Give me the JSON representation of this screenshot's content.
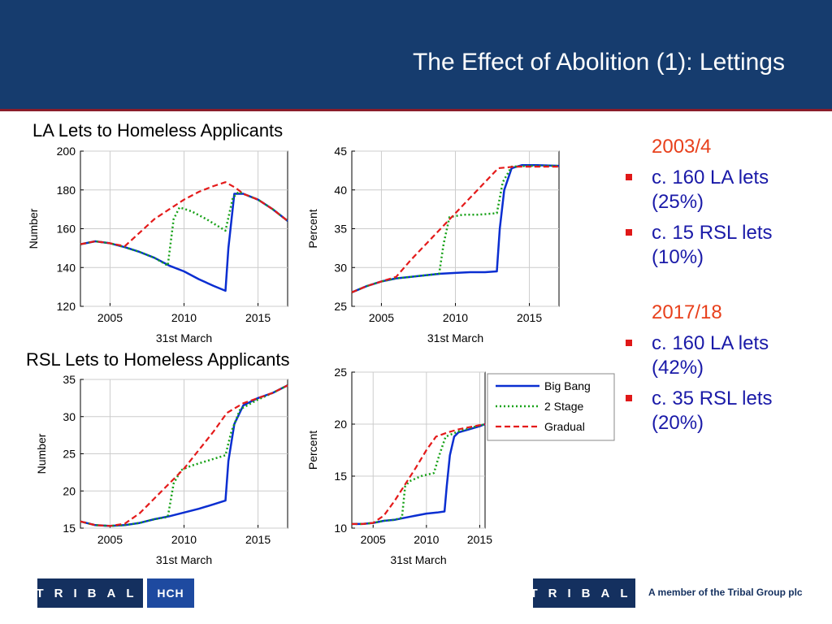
{
  "slide_title": "The Effect of Abolition (1): Lettings",
  "section_titles": {
    "la": "LA Lets to Homeless Applicants",
    "rsl": "RSL Lets to Homeless Applicants"
  },
  "bullets": {
    "group1": {
      "year": "2003/4",
      "items": [
        "c. 160 LA lets (25%)",
        "c. 15 RSL lets (10%)"
      ]
    },
    "group2": {
      "year": "2017/18",
      "items": [
        "c. 160 LA lets (42%)",
        "c. 35 RSL lets (20%)"
      ]
    }
  },
  "footer": {
    "logo1": "TRIBAL",
    "logo2": "HCH",
    "logo3": "TRIBAL",
    "member_text": "A member of the Tribal Group plc"
  },
  "colors": {
    "big_bang": "#0a2ed1",
    "two_stage": "#17a117",
    "gradual": "#e41a1a",
    "banner": "#163c6e"
  },
  "chart_data": [
    {
      "type": "line",
      "ylabel": "Number",
      "xlabel": "31st March",
      "xlim": [
        2003,
        2017
      ],
      "ylim": [
        120,
        200
      ],
      "xticks": [
        2005,
        2010,
        2015
      ],
      "yticks": [
        120,
        140,
        160,
        180,
        200
      ],
      "grid": true,
      "series": [
        {
          "name": "Big Bang",
          "points": [
            [
              2003,
              152
            ],
            [
              2004,
              153.5
            ],
            [
              2005,
              152.5
            ],
            [
              2006,
              150.5
            ],
            [
              2007,
              148
            ],
            [
              2008,
              145
            ],
            [
              2009,
              141
            ],
            [
              2010,
              138
            ],
            [
              2011,
              134
            ],
            [
              2012,
              130.5
            ],
            [
              2012.8,
              128
            ],
            [
              2013,
              150
            ],
            [
              2013.4,
              178
            ],
            [
              2014,
              178
            ],
            [
              2015,
              175
            ],
            [
              2016,
              170
            ],
            [
              2017,
              164
            ]
          ]
        },
        {
          "name": "2 Stage",
          "points": [
            [
              2003,
              152
            ],
            [
              2004,
              153.5
            ],
            [
              2005,
              152.5
            ],
            [
              2006,
              150.5
            ],
            [
              2007,
              148
            ],
            [
              2008,
              145
            ],
            [
              2008.9,
              141
            ],
            [
              2009.3,
              165
            ],
            [
              2009.7,
              171
            ],
            [
              2010.5,
              169
            ],
            [
              2011.5,
              165
            ],
            [
              2012.8,
              159
            ],
            [
              2013.3,
              176
            ],
            [
              2013.7,
              179
            ],
            [
              2014,
              178
            ],
            [
              2015,
              175
            ],
            [
              2016,
              170
            ],
            [
              2017,
              164
            ]
          ]
        },
        {
          "name": "Gradual",
          "points": [
            [
              2003,
              152
            ],
            [
              2004,
              153.5
            ],
            [
              2005,
              152.5
            ],
            [
              2006,
              151
            ],
            [
              2007,
              158
            ],
            [
              2008,
              165
            ],
            [
              2009,
              170
            ],
            [
              2010,
              175
            ],
            [
              2011,
              179
            ],
            [
              2012,
              182
            ],
            [
              2012.8,
              184
            ],
            [
              2013.5,
              181
            ],
            [
              2014,
              178
            ],
            [
              2015,
              175
            ],
            [
              2016,
              170
            ],
            [
              2017,
              164
            ]
          ]
        }
      ]
    },
    {
      "type": "line",
      "ylabel": "Percent",
      "xlabel": "31st March",
      "xlim": [
        2003,
        2017
      ],
      "ylim": [
        25,
        45
      ],
      "xticks": [
        2005,
        2010,
        2015
      ],
      "yticks": [
        25,
        30,
        35,
        40,
        45
      ],
      "grid": true,
      "series": [
        {
          "name": "Big Bang",
          "points": [
            [
              2003,
              26.8
            ],
            [
              2004,
              27.6
            ],
            [
              2005,
              28.2
            ],
            [
              2006,
              28.6
            ],
            [
              2007,
              28.8
            ],
            [
              2008,
              29.0
            ],
            [
              2009,
              29.2
            ],
            [
              2010,
              29.3
            ],
            [
              2011,
              29.4
            ],
            [
              2012,
              29.4
            ],
            [
              2012.8,
              29.5
            ],
            [
              2013,
              35
            ],
            [
              2013.3,
              40
            ],
            [
              2013.8,
              42.8
            ],
            [
              2014.5,
              43.2
            ],
            [
              2015.5,
              43.2
            ],
            [
              2017,
              43.1
            ]
          ]
        },
        {
          "name": "2 Stage",
          "points": [
            [
              2003,
              26.8
            ],
            [
              2004,
              27.6
            ],
            [
              2005,
              28.2
            ],
            [
              2006,
              28.6
            ],
            [
              2007,
              28.8
            ],
            [
              2008,
              29.0
            ],
            [
              2008.9,
              29.2
            ],
            [
              2009.2,
              33
            ],
            [
              2009.6,
              36.5
            ],
            [
              2010.5,
              36.8
            ],
            [
              2011.5,
              36.8
            ],
            [
              2012.8,
              37
            ],
            [
              2013.2,
              41
            ],
            [
              2013.8,
              43
            ],
            [
              2015,
              43.1
            ],
            [
              2017,
              43.1
            ]
          ]
        },
        {
          "name": "Gradual",
          "points": [
            [
              2003,
              26.8
            ],
            [
              2004,
              27.6
            ],
            [
              2005,
              28.2
            ],
            [
              2006,
              28.8
            ],
            [
              2007,
              31
            ],
            [
              2008,
              33
            ],
            [
              2009,
              35
            ],
            [
              2010,
              37
            ],
            [
              2011,
              39
            ],
            [
              2012,
              41
            ],
            [
              2012.9,
              42.8
            ],
            [
              2014,
              43
            ],
            [
              2015,
              43
            ],
            [
              2017,
              43
            ]
          ]
        }
      ]
    },
    {
      "type": "line",
      "ylabel": "Number",
      "xlabel": "31st March",
      "xlim": [
        2003,
        2017
      ],
      "ylim": [
        15,
        35
      ],
      "xticks": [
        2005,
        2010,
        2015
      ],
      "yticks": [
        15,
        20,
        25,
        30,
        35
      ],
      "grid": true,
      "series": [
        {
          "name": "Big Bang",
          "points": [
            [
              2003,
              15.9
            ],
            [
              2004,
              15.4
            ],
            [
              2005,
              15.3
            ],
            [
              2006,
              15.4
            ],
            [
              2007,
              15.7
            ],
            [
              2008,
              16.2
            ],
            [
              2009,
              16.6
            ],
            [
              2010,
              17.1
            ],
            [
              2011,
              17.6
            ],
            [
              2012,
              18.2
            ],
            [
              2012.8,
              18.7
            ],
            [
              2013,
              24
            ],
            [
              2013.4,
              29
            ],
            [
              2014,
              31.5
            ],
            [
              2015,
              32.5
            ],
            [
              2016,
              33.2
            ],
            [
              2017,
              34.2
            ]
          ]
        },
        {
          "name": "2 Stage",
          "points": [
            [
              2003,
              15.9
            ],
            [
              2004,
              15.4
            ],
            [
              2005,
              15.3
            ],
            [
              2006,
              15.4
            ],
            [
              2007,
              15.7
            ],
            [
              2008,
              16.2
            ],
            [
              2008.9,
              16.5
            ],
            [
              2009.3,
              21
            ],
            [
              2009.8,
              22.8
            ],
            [
              2010.5,
              23.4
            ],
            [
              2011.5,
              24
            ],
            [
              2012.8,
              24.8
            ],
            [
              2013.2,
              28
            ],
            [
              2013.8,
              31
            ],
            [
              2015,
              32.3
            ],
            [
              2016,
              33.2
            ],
            [
              2017,
              34.2
            ]
          ]
        },
        {
          "name": "Gradual",
          "points": [
            [
              2003,
              15.9
            ],
            [
              2004,
              15.4
            ],
            [
              2005,
              15.3
            ],
            [
              2006,
              15.6
            ],
            [
              2007,
              17
            ],
            [
              2008,
              19
            ],
            [
              2009,
              21
            ],
            [
              2010,
              23
            ],
            [
              2011,
              25.5
            ],
            [
              2012,
              28
            ],
            [
              2012.9,
              30.5
            ],
            [
              2014,
              31.8
            ],
            [
              2015,
              32.5
            ],
            [
              2016,
              33.2
            ],
            [
              2017,
              34.2
            ]
          ]
        }
      ]
    },
    {
      "type": "line",
      "ylabel": "Percent",
      "xlabel": "31st March",
      "xlim": [
        2003,
        2015.5
      ],
      "ylim": [
        10,
        25
      ],
      "xticks": [
        2005,
        2010,
        2015
      ],
      "yticks": [
        10,
        15,
        20,
        25
      ],
      "grid": true,
      "legend": {
        "position": "right",
        "entries": [
          "Big Bang",
          "2 Stage",
          "Gradual"
        ]
      },
      "series": [
        {
          "name": "Big Bang",
          "points": [
            [
              2003,
              10.4
            ],
            [
              2004,
              10.4
            ],
            [
              2005,
              10.5
            ],
            [
              2006,
              10.7
            ],
            [
              2007,
              10.8
            ],
            [
              2008,
              11.0
            ],
            [
              2009,
              11.2
            ],
            [
              2010,
              11.4
            ],
            [
              2011,
              11.5
            ],
            [
              2011.7,
              11.6
            ],
            [
              2011.9,
              14
            ],
            [
              2012.2,
              17
            ],
            [
              2012.6,
              18.8
            ],
            [
              2013,
              19.2
            ],
            [
              2014,
              19.5
            ],
            [
              2015,
              19.8
            ],
            [
              2015.5,
              20
            ]
          ]
        },
        {
          "name": "2 Stage",
          "points": [
            [
              2003,
              10.4
            ],
            [
              2004,
              10.4
            ],
            [
              2005,
              10.5
            ],
            [
              2006,
              10.7
            ],
            [
              2007,
              10.8
            ],
            [
              2007.7,
              11
            ],
            [
              2008,
              14
            ],
            [
              2008.4,
              14.5
            ],
            [
              2009.5,
              15
            ],
            [
              2010.7,
              15.3
            ],
            [
              2011.2,
              17
            ],
            [
              2011.8,
              18.8
            ],
            [
              2013,
              19.3
            ],
            [
              2014,
              19.6
            ],
            [
              2015.5,
              20
            ]
          ]
        },
        {
          "name": "Gradual",
          "points": [
            [
              2003,
              10.4
            ],
            [
              2004,
              10.4
            ],
            [
              2005,
              10.5
            ],
            [
              2006,
              11.2
            ],
            [
              2007,
              12.6
            ],
            [
              2008,
              14.2
            ],
            [
              2009,
              15.8
            ],
            [
              2010,
              17.5
            ],
            [
              2010.9,
              18.8
            ],
            [
              2012,
              19.2
            ],
            [
              2013,
              19.5
            ],
            [
              2014,
              19.7
            ],
            [
              2015.5,
              20
            ]
          ]
        }
      ]
    }
  ]
}
